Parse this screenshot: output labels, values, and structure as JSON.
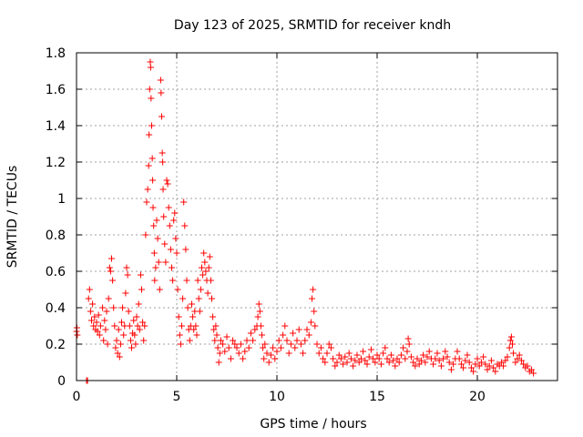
{
  "chart_data": {
    "type": "scatter",
    "title": "Day 123 of 2025, SRMTID for receiver kndh",
    "xlabel": "GPS time / hours",
    "ylabel": "SRMTID / TECUs",
    "xlim": [
      0,
      24
    ],
    "ylim": [
      0,
      1.8
    ],
    "xticks": [
      0,
      5,
      10,
      15,
      20
    ],
    "xtick_labels": [
      "0",
      "5",
      "10",
      "15",
      "20"
    ],
    "yticks": [
      0,
      0.2,
      0.4,
      0.6,
      0.8,
      1.0,
      1.2,
      1.4,
      1.6,
      1.8
    ],
    "ytick_labels": [
      "0",
      "0.2",
      "0.4",
      "0.6",
      "0.8",
      "1",
      "1.2",
      "1.4",
      "1.6",
      "1.8"
    ],
    "grid": true,
    "marker": "+",
    "color": "#ff0000",
    "series": [
      {
        "name": "SRMTID",
        "points": [
          [
            0.0,
            0.27
          ],
          [
            0.02,
            0.29
          ],
          [
            0.04,
            0.25
          ],
          [
            0.5,
            0.0
          ],
          [
            0.55,
            0.0
          ],
          [
            0.6,
            0.45
          ],
          [
            0.65,
            0.5
          ],
          [
            0.7,
            0.38
          ],
          [
            0.75,
            0.33
          ],
          [
            0.8,
            0.42
          ],
          [
            0.85,
            0.3
          ],
          [
            0.9,
            0.35
          ],
          [
            0.95,
            0.28
          ],
          [
            1.0,
            0.32
          ],
          [
            1.05,
            0.27
          ],
          [
            1.1,
            0.36
          ],
          [
            1.15,
            0.25
          ],
          [
            1.2,
            0.3
          ],
          [
            1.3,
            0.4
          ],
          [
            1.35,
            0.22
          ],
          [
            1.4,
            0.33
          ],
          [
            1.45,
            0.28
          ],
          [
            1.5,
            0.38
          ],
          [
            1.55,
            0.2
          ],
          [
            1.6,
            0.45
          ],
          [
            1.65,
            0.62
          ],
          [
            1.7,
            0.6
          ],
          [
            1.75,
            0.67
          ],
          [
            1.8,
            0.55
          ],
          [
            1.85,
            0.4
          ],
          [
            1.9,
            0.3
          ],
          [
            1.95,
            0.18
          ],
          [
            2.0,
            0.22
          ],
          [
            2.05,
            0.15
          ],
          [
            2.1,
            0.28
          ],
          [
            2.15,
            0.13
          ],
          [
            2.2,
            0.2
          ],
          [
            2.25,
            0.32
          ],
          [
            2.3,
            0.4
          ],
          [
            2.35,
            0.25
          ],
          [
            2.4,
            0.3
          ],
          [
            2.45,
            0.48
          ],
          [
            2.5,
            0.62
          ],
          [
            2.55,
            0.58
          ],
          [
            2.6,
            0.38
          ],
          [
            2.65,
            0.3
          ],
          [
            2.7,
            0.22
          ],
          [
            2.75,
            0.18
          ],
          [
            2.8,
            0.26
          ],
          [
            2.85,
            0.33
          ],
          [
            2.9,
            0.25
          ],
          [
            2.95,
            0.2
          ],
          [
            3.0,
            0.35
          ],
          [
            3.05,
            0.3
          ],
          [
            3.1,
            0.42
          ],
          [
            3.15,
            0.28
          ],
          [
            3.2,
            0.58
          ],
          [
            3.25,
            0.5
          ],
          [
            3.3,
            0.32
          ],
          [
            3.35,
            0.22
          ],
          [
            3.4,
            0.3
          ],
          [
            3.45,
            0.8
          ],
          [
            3.5,
            0.98
          ],
          [
            3.55,
            1.05
          ],
          [
            3.6,
            1.18
          ],
          [
            3.62,
            1.35
          ],
          [
            3.65,
            1.6
          ],
          [
            3.68,
            1.75
          ],
          [
            3.7,
            1.72
          ],
          [
            3.72,
            1.55
          ],
          [
            3.75,
            1.4
          ],
          [
            3.78,
            1.22
          ],
          [
            3.8,
            1.1
          ],
          [
            3.82,
            0.95
          ],
          [
            3.85,
            0.85
          ],
          [
            3.88,
            0.7
          ],
          [
            3.9,
            0.55
          ],
          [
            3.95,
            0.62
          ],
          [
            4.0,
            0.88
          ],
          [
            4.05,
            0.78
          ],
          [
            4.1,
            0.65
          ],
          [
            4.15,
            0.5
          ],
          [
            4.2,
            1.65
          ],
          [
            4.22,
            1.58
          ],
          [
            4.25,
            1.45
          ],
          [
            4.28,
            1.25
          ],
          [
            4.3,
            1.2
          ],
          [
            4.32,
            1.05
          ],
          [
            4.35,
            0.9
          ],
          [
            4.4,
            0.75
          ],
          [
            4.45,
            0.65
          ],
          [
            4.5,
            1.1
          ],
          [
            4.55,
            1.08
          ],
          [
            4.6,
            0.95
          ],
          [
            4.65,
            0.85
          ],
          [
            4.7,
            0.72
          ],
          [
            4.75,
            0.62
          ],
          [
            4.8,
            0.55
          ],
          [
            4.85,
            0.88
          ],
          [
            4.9,
            0.92
          ],
          [
            4.95,
            0.78
          ],
          [
            5.0,
            0.7
          ],
          [
            5.05,
            0.5
          ],
          [
            5.1,
            0.35
          ],
          [
            5.15,
            0.25
          ],
          [
            5.2,
            0.2
          ],
          [
            5.25,
            0.3
          ],
          [
            5.3,
            0.45
          ],
          [
            5.35,
            0.98
          ],
          [
            5.4,
            0.85
          ],
          [
            5.45,
            0.72
          ],
          [
            5.5,
            0.55
          ],
          [
            5.55,
            0.4
          ],
          [
            5.6,
            0.28
          ],
          [
            5.65,
            0.22
          ],
          [
            5.7,
            0.3
          ],
          [
            5.75,
            0.42
          ],
          [
            5.8,
            0.35
          ],
          [
            5.85,
            0.28
          ],
          [
            5.9,
            0.38
          ],
          [
            5.95,
            0.3
          ],
          [
            6.0,
            0.25
          ],
          [
            6.05,
            0.55
          ],
          [
            6.1,
            0.45
          ],
          [
            6.15,
            0.38
          ],
          [
            6.2,
            0.5
          ],
          [
            6.25,
            0.62
          ],
          [
            6.3,
            0.58
          ],
          [
            6.35,
            0.7
          ],
          [
            6.4,
            0.65
          ],
          [
            6.45,
            0.6
          ],
          [
            6.5,
            0.55
          ],
          [
            6.55,
            0.48
          ],
          [
            6.6,
            0.62
          ],
          [
            6.65,
            0.68
          ],
          [
            6.7,
            0.55
          ],
          [
            6.75,
            0.45
          ],
          [
            6.8,
            0.35
          ],
          [
            6.85,
            0.28
          ],
          [
            6.9,
            0.22
          ],
          [
            6.95,
            0.3
          ],
          [
            7.0,
            0.25
          ],
          [
            7.05,
            0.18
          ],
          [
            7.1,
            0.1
          ],
          [
            7.15,
            0.15
          ],
          [
            7.2,
            0.22
          ],
          [
            7.3,
            0.2
          ],
          [
            7.4,
            0.16
          ],
          [
            7.5,
            0.24
          ],
          [
            7.6,
            0.18
          ],
          [
            7.7,
            0.12
          ],
          [
            7.8,
            0.22
          ],
          [
            7.9,
            0.2
          ],
          [
            8.0,
            0.18
          ],
          [
            8.1,
            0.15
          ],
          [
            8.2,
            0.2
          ],
          [
            8.3,
            0.12
          ],
          [
            8.4,
            0.16
          ],
          [
            8.5,
            0.22
          ],
          [
            8.6,
            0.18
          ],
          [
            8.7,
            0.26
          ],
          [
            8.8,
            0.22
          ],
          [
            8.9,
            0.28
          ],
          [
            9.0,
            0.3
          ],
          [
            9.05,
            0.35
          ],
          [
            9.1,
            0.42
          ],
          [
            9.15,
            0.38
          ],
          [
            9.2,
            0.3
          ],
          [
            9.25,
            0.25
          ],
          [
            9.3,
            0.18
          ],
          [
            9.35,
            0.12
          ],
          [
            9.4,
            0.2
          ],
          [
            9.5,
            0.15
          ],
          [
            9.6,
            0.1
          ],
          [
            9.7,
            0.14
          ],
          [
            9.8,
            0.18
          ],
          [
            9.9,
            0.12
          ],
          [
            10.0,
            0.16
          ],
          [
            10.1,
            0.22
          ],
          [
            10.2,
            0.18
          ],
          [
            10.3,
            0.25
          ],
          [
            10.4,
            0.3
          ],
          [
            10.5,
            0.22
          ],
          [
            10.6,
            0.15
          ],
          [
            10.7,
            0.2
          ],
          [
            10.8,
            0.26
          ],
          [
            10.9,
            0.18
          ],
          [
            11.0,
            0.22
          ],
          [
            11.1,
            0.28
          ],
          [
            11.2,
            0.2
          ],
          [
            11.3,
            0.15
          ],
          [
            11.4,
            0.22
          ],
          [
            11.5,
            0.28
          ],
          [
            11.6,
            0.25
          ],
          [
            11.7,
            0.32
          ],
          [
            11.75,
            0.45
          ],
          [
            11.8,
            0.5
          ],
          [
            11.85,
            0.38
          ],
          [
            11.9,
            0.3
          ],
          [
            12.0,
            0.2
          ],
          [
            12.1,
            0.15
          ],
          [
            12.2,
            0.18
          ],
          [
            12.3,
            0.12
          ],
          [
            12.4,
            0.1
          ],
          [
            12.5,
            0.15
          ],
          [
            12.6,
            0.2
          ],
          [
            12.7,
            0.18
          ],
          [
            12.8,
            0.12
          ],
          [
            12.9,
            0.08
          ],
          [
            13.0,
            0.1
          ],
          [
            13.1,
            0.14
          ],
          [
            13.2,
            0.12
          ],
          [
            13.3,
            0.09
          ],
          [
            13.4,
            0.13
          ],
          [
            13.5,
            0.1
          ],
          [
            13.6,
            0.15
          ],
          [
            13.7,
            0.12
          ],
          [
            13.8,
            0.08
          ],
          [
            13.9,
            0.11
          ],
          [
            14.0,
            0.14
          ],
          [
            14.1,
            0.1
          ],
          [
            14.2,
            0.12
          ],
          [
            14.3,
            0.16
          ],
          [
            14.4,
            0.11
          ],
          [
            14.5,
            0.09
          ],
          [
            14.6,
            0.13
          ],
          [
            14.7,
            0.17
          ],
          [
            14.8,
            0.12
          ],
          [
            14.9,
            0.1
          ],
          [
            15.0,
            0.14
          ],
          [
            15.1,
            0.12
          ],
          [
            15.2,
            0.09
          ],
          [
            15.3,
            0.15
          ],
          [
            15.4,
            0.18
          ],
          [
            15.5,
            0.12
          ],
          [
            15.6,
            0.1
          ],
          [
            15.7,
            0.14
          ],
          [
            15.8,
            0.11
          ],
          [
            15.9,
            0.08
          ],
          [
            16.0,
            0.12
          ],
          [
            16.1,
            0.1
          ],
          [
            16.2,
            0.14
          ],
          [
            16.3,
            0.18
          ],
          [
            16.4,
            0.12
          ],
          [
            16.5,
            0.16
          ],
          [
            16.55,
            0.23
          ],
          [
            16.6,
            0.2
          ],
          [
            16.7,
            0.13
          ],
          [
            16.8,
            0.1
          ],
          [
            16.9,
            0.08
          ],
          [
            17.0,
            0.12
          ],
          [
            17.1,
            0.09
          ],
          [
            17.2,
            0.11
          ],
          [
            17.3,
            0.14
          ],
          [
            17.4,
            0.1
          ],
          [
            17.5,
            0.13
          ],
          [
            17.6,
            0.16
          ],
          [
            17.7,
            0.12
          ],
          [
            17.8,
            0.09
          ],
          [
            17.9,
            0.12
          ],
          [
            18.0,
            0.15
          ],
          [
            18.1,
            0.11
          ],
          [
            18.2,
            0.08
          ],
          [
            18.3,
            0.12
          ],
          [
            18.4,
            0.16
          ],
          [
            18.5,
            0.13
          ],
          [
            18.6,
            0.1
          ],
          [
            18.7,
            0.06
          ],
          [
            18.8,
            0.09
          ],
          [
            18.9,
            0.12
          ],
          [
            19.0,
            0.16
          ],
          [
            19.1,
            0.12
          ],
          [
            19.2,
            0.09
          ],
          [
            19.3,
            0.07
          ],
          [
            19.4,
            0.11
          ],
          [
            19.5,
            0.14
          ],
          [
            19.6,
            0.1
          ],
          [
            19.7,
            0.07
          ],
          [
            19.8,
            0.05
          ],
          [
            19.9,
            0.09
          ],
          [
            20.0,
            0.12
          ],
          [
            20.1,
            0.08
          ],
          [
            20.2,
            0.1
          ],
          [
            20.3,
            0.13
          ],
          [
            20.4,
            0.09
          ],
          [
            20.5,
            0.06
          ],
          [
            20.6,
            0.08
          ],
          [
            20.7,
            0.11
          ],
          [
            20.8,
            0.07
          ],
          [
            20.9,
            0.05
          ],
          [
            21.0,
            0.09
          ],
          [
            21.1,
            0.08
          ],
          [
            21.2,
            0.1
          ],
          [
            21.3,
            0.08
          ],
          [
            21.4,
            0.11
          ],
          [
            21.5,
            0.13
          ],
          [
            21.6,
            0.18
          ],
          [
            21.65,
            0.22
          ],
          [
            21.7,
            0.24
          ],
          [
            21.75,
            0.2
          ],
          [
            21.8,
            0.15
          ],
          [
            21.9,
            0.1
          ],
          [
            22.0,
            0.12
          ],
          [
            22.1,
            0.14
          ],
          [
            22.2,
            0.11
          ],
          [
            22.3,
            0.09
          ],
          [
            22.4,
            0.07
          ],
          [
            22.5,
            0.08
          ],
          [
            22.6,
            0.05
          ],
          [
            22.7,
            0.06
          ],
          [
            22.8,
            0.04
          ]
        ]
      }
    ]
  }
}
